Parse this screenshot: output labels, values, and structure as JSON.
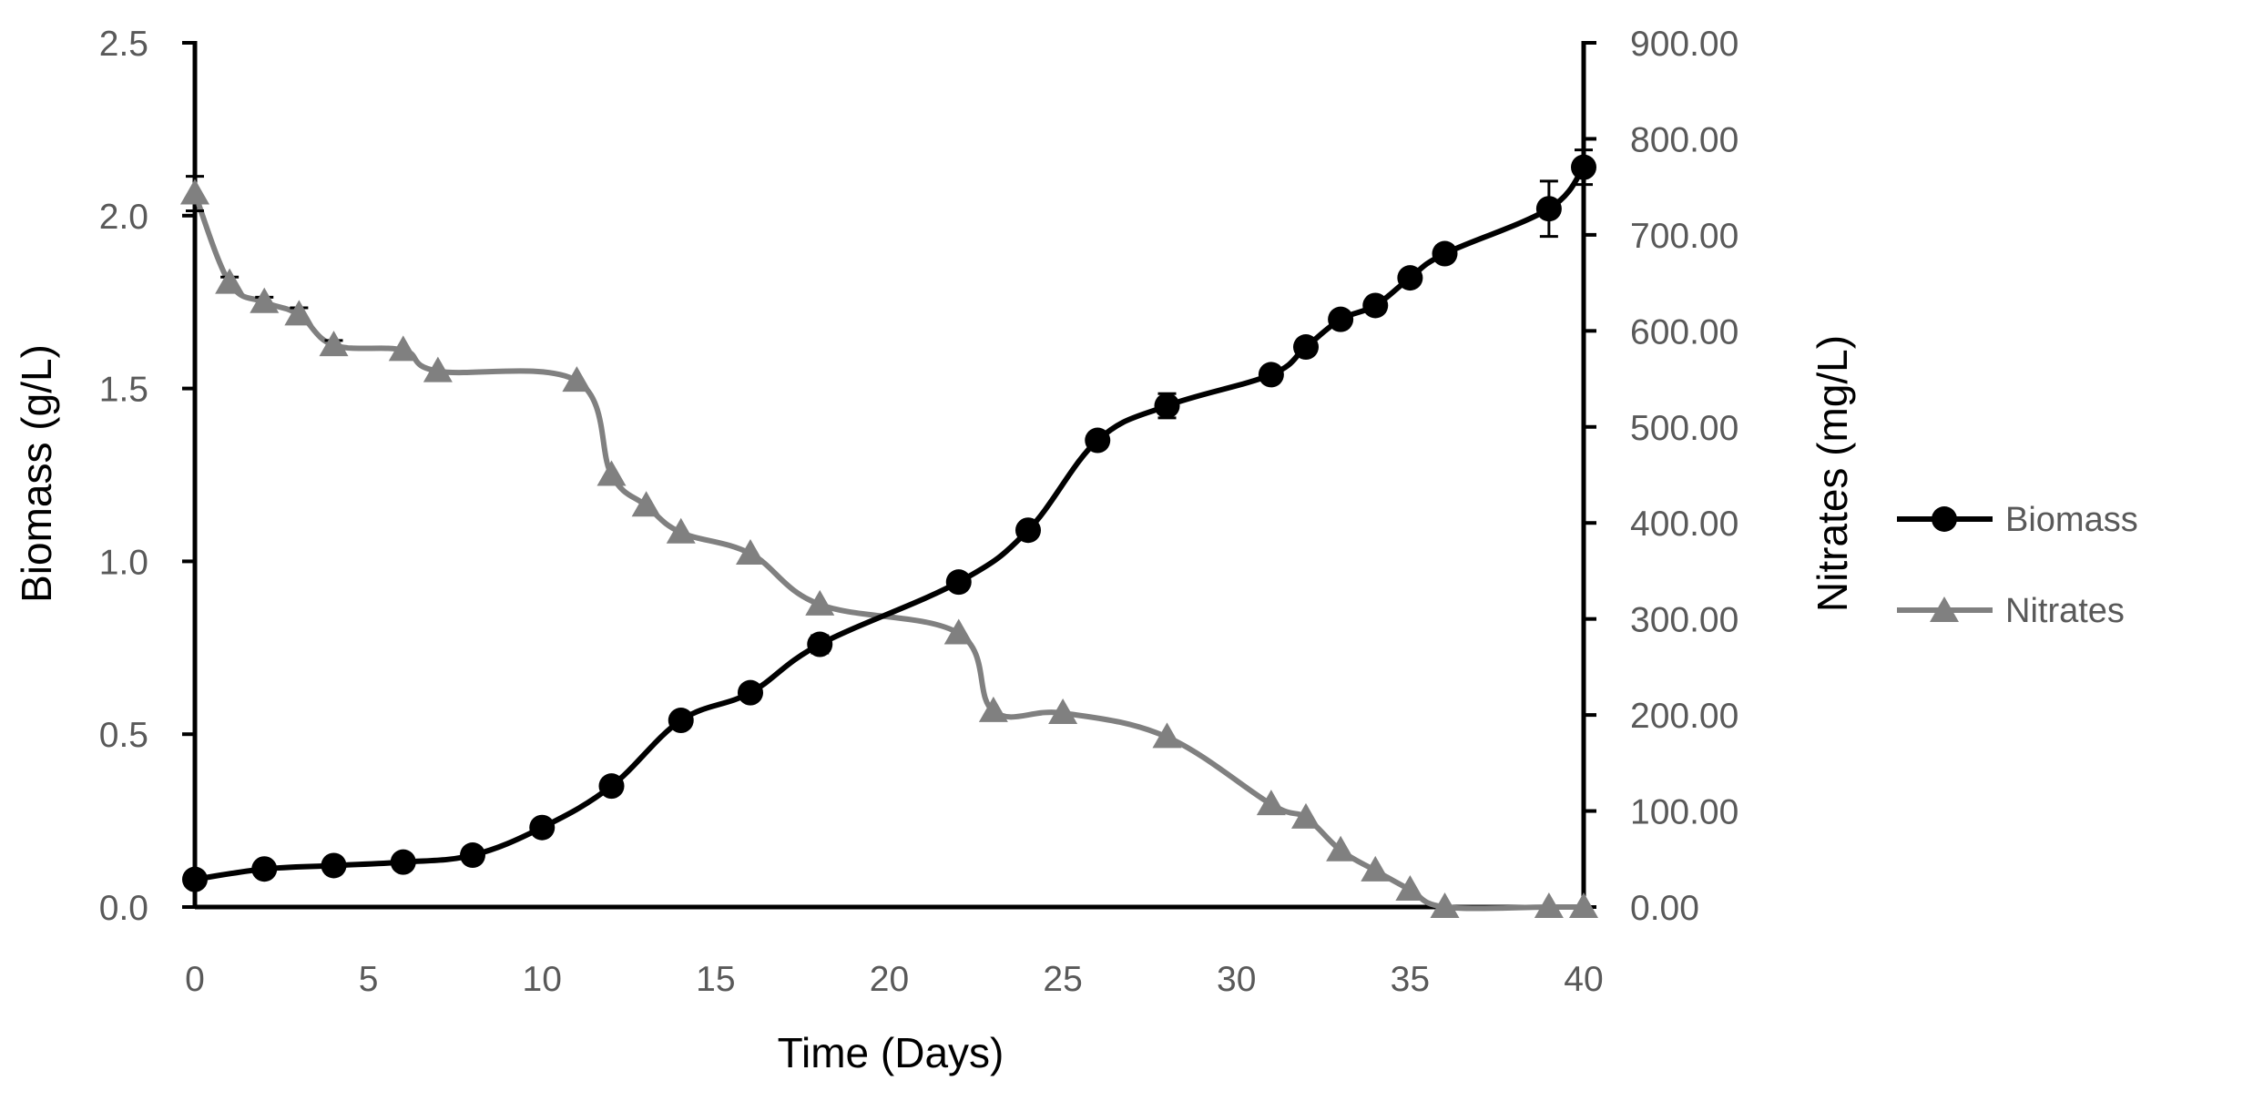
{
  "chart_data": {
    "type": "line",
    "title": "",
    "xlabel": "Time (Days)",
    "ylabel": "Biomass (g/L)",
    "y2label": "Nitrates (mg/L)",
    "xlim": [
      0,
      40
    ],
    "ylim": [
      0,
      2.5
    ],
    "y2lim": [
      0,
      900
    ],
    "x_ticks": [
      "0",
      "5",
      "10",
      "15",
      "20",
      "25",
      "30",
      "35",
      "40"
    ],
    "y_ticks": [
      "0.0",
      "0.5",
      "1.0",
      "1.5",
      "2.0",
      "2.5"
    ],
    "y2_ticks": [
      "0.00",
      "100.00",
      "200.00",
      "300.00",
      "400.00",
      "500.00",
      "600.00",
      "700.00",
      "800.00",
      "900.00"
    ],
    "grid": false,
    "legend_position": "right",
    "series": [
      {
        "name": "Biomass",
        "axis": "left",
        "color": "#000000",
        "marker": "circle",
        "x": [
          0,
          2,
          4,
          6,
          8,
          10,
          12,
          14,
          16,
          18,
          22,
          24,
          26,
          28,
          31,
          32,
          33,
          34,
          35,
          36,
          39,
          40
        ],
        "y": [
          0.08,
          0.11,
          0.12,
          0.13,
          0.15,
          0.23,
          0.35,
          0.54,
          0.62,
          0.76,
          0.94,
          1.09,
          1.35,
          1.45,
          1.54,
          1.62,
          1.7,
          1.74,
          1.82,
          1.89,
          2.02,
          2.14
        ],
        "error": [
          0,
          0,
          0,
          0,
          0,
          0,
          0,
          0,
          0,
          0.025,
          0,
          0,
          0,
          0.035,
          0,
          0,
          0,
          0,
          0,
          0,
          0.08,
          0.05
        ]
      },
      {
        "name": "Nitrates",
        "axis": "right",
        "color": "#808080",
        "marker": "triangle",
        "x": [
          0,
          1,
          2,
          3,
          4,
          6,
          7,
          11,
          12,
          13,
          14,
          16,
          18,
          22,
          23,
          25,
          28,
          31,
          32,
          33,
          34,
          35,
          36,
          39,
          40
        ],
        "y": [
          743,
          650,
          630,
          617,
          585,
          580,
          558,
          548,
          450,
          418,
          390,
          368,
          315,
          285,
          204,
          202,
          177,
          107,
          93,
          59,
          38,
          18,
          0,
          0,
          0
        ],
        "error": [
          18,
          6,
          5,
          7,
          5,
          0,
          0,
          0,
          0,
          0,
          0,
          0,
          0,
          0,
          0,
          0,
          0,
          0,
          0,
          0,
          0,
          0,
          0,
          0,
          0
        ]
      }
    ]
  }
}
